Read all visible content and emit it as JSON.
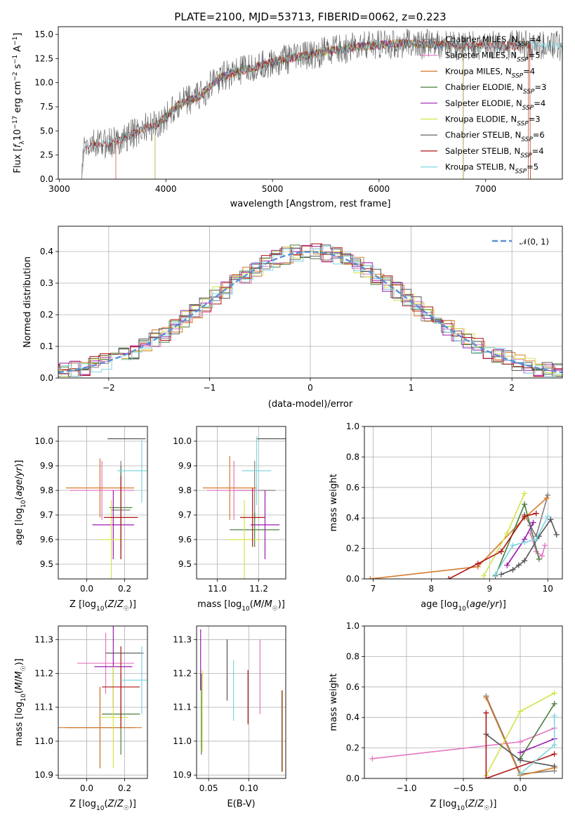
{
  "figure": {
    "title": "PLATE=2100, MJD=53713, FIBERID=0062, z=0.223"
  },
  "colors": {
    "C_MILES": "#7f7f7f",
    "S_MILES": "#e377c2",
    "K_MILES": "#d67a2a",
    "C_ELODIE": "#4a7f3f",
    "S_ELODIE": "#9a1ab0",
    "K_ELODIE": "#d4e34a",
    "C_STELIB": "#555555",
    "S_STELIB": "#b01515",
    "K_STELIB": "#7fd6e0",
    "gauss": "#5b8fd6",
    "grid": "#b0b0b0"
  },
  "chart_data": [
    {
      "id": "spectrum",
      "type": "line",
      "xlabel": "wavelength [Angstrom, rest frame]",
      "ylabel": "Flux [fλ10⁻¹⁷ erg cm⁻² s⁻¹ A⁻¹]",
      "xlim": [
        2990,
        7720
      ],
      "ylim": [
        0,
        15.8
      ],
      "xticks": [
        "3000",
        "4000",
        "5000",
        "6000",
        "7000"
      ],
      "yticks": [
        "0.0",
        "2.5",
        "5.0",
        "7.5",
        "10.0",
        "12.5",
        "15.0"
      ],
      "grid": false,
      "legend_position": "top-right",
      "data_continuum": {
        "x": [
          3210,
          3230,
          3300,
          3400,
          3500,
          3600,
          3700,
          3800,
          3900,
          4000,
          4100,
          4200,
          4300,
          4400,
          4500,
          4600,
          4800,
          5000,
          5200,
          5400,
          5600,
          5800,
          6000,
          6200,
          6400,
          6600,
          6800,
          7000,
          7200,
          7400,
          7600,
          7720
        ],
        "y": [
          0,
          3.2,
          3.5,
          3.7,
          3.8,
          4.2,
          4.8,
          5.3,
          5.5,
          6.5,
          7.6,
          8.1,
          8.5,
          9.5,
          10.5,
          10.9,
          11.5,
          12.1,
          12.6,
          13.0,
          13.4,
          13.7,
          13.9,
          14.1,
          14.0,
          13.9,
          13.8,
          13.9,
          13.8,
          13.9,
          13.8,
          13.8
        ]
      },
      "legend": [
        {
          "label": "Chabrier MILES, N_SSP=4",
          "text": "Chabrier MILES, N",
          "sub": "SSP",
          "tail": "=4",
          "color": "C_MILES"
        },
        {
          "label": "Salpeter MILES, N_SSP=5",
          "text": "Salpeter MILES, N",
          "sub": "SSP",
          "tail": "=5",
          "color": "S_MILES"
        },
        {
          "label": "Kroupa MILES, N_SSP=4",
          "text": "Kroupa MILES, N",
          "sub": "SSP",
          "tail": "=4",
          "color": "K_MILES"
        },
        {
          "label": "Chabrier ELODIE, N_SSP=3",
          "text": "Chabrier ELODIE, N",
          "sub": "SSP",
          "tail": "=3",
          "color": "C_ELODIE"
        },
        {
          "label": "Salpeter ELODIE, N_SSP=4",
          "text": "Salpeter ELODIE, N",
          "sub": "SSP",
          "tail": "=4",
          "color": "S_ELODIE"
        },
        {
          "label": "Kroupa ELODIE, N_SSP=3",
          "text": "Kroupa ELODIE, N",
          "sub": "SSP",
          "tail": "=3",
          "color": "K_ELODIE"
        },
        {
          "label": "Chabrier STELIB, N_SSP=6",
          "text": "Chabrier STELIB, N",
          "sub": "SSP",
          "tail": "=6",
          "color": "C_STELIB"
        },
        {
          "label": "Salpeter STELIB, N_SSP=4",
          "text": "Salpeter STELIB, N",
          "sub": "SSP",
          "tail": "=4",
          "color": "S_STELIB"
        },
        {
          "label": "Kroupa STELIB, N_SSP=5",
          "text": "Kroupa STELIB, N",
          "sub": "SSP",
          "tail": "=5",
          "color": "K_STELIB"
        }
      ]
    },
    {
      "id": "residuals",
      "type": "histogram",
      "xlabel": "(data-model)/error",
      "ylabel": "Normed distribution",
      "xlim": [
        -2.5,
        2.5
      ],
      "ylim": [
        0,
        0.48
      ],
      "xticks": [
        -2,
        -1,
        0,
        1,
        2
      ],
      "yticks": [
        0.0,
        0.1,
        0.2,
        0.3,
        0.4
      ],
      "grid": true,
      "legend_position": "top-right",
      "gauss_label": "𝒩(0, 1)",
      "bin_width": 0.1
    },
    {
      "id": "age_vs_Z",
      "type": "errorbar",
      "xlabel": "Z [log₁₀(Z/Z☉)]",
      "ylabel": "age  [log₁₀(age/yr)]",
      "xlim": [
        -0.15,
        0.32
      ],
      "ylim": [
        9.44,
        10.06
      ],
      "xticks": [
        0.0,
        0.2
      ],
      "yticks": [
        9.5,
        9.6,
        9.7,
        9.8,
        9.9,
        10.0
      ],
      "points": [
        {
          "m": "C_MILES",
          "x": 0.18,
          "xe": 0.05,
          "y": 9.72,
          "ye": 0.2
        },
        {
          "m": "S_MILES",
          "x": 0.08,
          "xe": 0.17,
          "y": 9.8,
          "ye": 0.12
        },
        {
          "m": "K_MILES",
          "x": 0.07,
          "xe": 0.18,
          "y": 9.81,
          "ye": 0.12
        },
        {
          "m": "C_ELODIE",
          "x": 0.18,
          "xe": 0.06,
          "y": 9.73,
          "ye": 0.17
        },
        {
          "m": "S_ELODIE",
          "x": 0.14,
          "xe": 0.11,
          "y": 9.66,
          "ye": 0.14
        },
        {
          "m": "K_ELODIE",
          "x": 0.13,
          "xe": 0.06,
          "y": 9.6,
          "ye": 0.16
        },
        {
          "m": "C_STELIB",
          "x": 0.21,
          "xe": 0.1,
          "y": 10.01,
          "ye": 0.0
        },
        {
          "m": "S_STELIB",
          "x": 0.18,
          "xe": 0.09,
          "y": 9.69,
          "ye": 0.17
        },
        {
          "m": "K_STELIB",
          "x": 0.29,
          "xe": 0.13,
          "y": 9.88,
          "ye": 0.13
        }
      ]
    },
    {
      "id": "age_vs_mass",
      "type": "errorbar",
      "xlabel": "mass [log₁₀(M/M☉)]",
      "ylabel": "",
      "xlim": [
        10.9,
        11.33
      ],
      "ylim": [
        9.44,
        10.06
      ],
      "xticks": [
        11.0,
        11.2
      ],
      "yticks": [
        9.5,
        9.6,
        9.7,
        9.8,
        9.9,
        10.0
      ],
      "points": [
        {
          "m": "C_MILES",
          "x": 11.18,
          "xe": 0.1,
          "y": 9.8,
          "ye": 0.12
        },
        {
          "m": "S_MILES",
          "x": 11.08,
          "xe": 0.13,
          "y": 9.8,
          "ye": 0.12
        },
        {
          "m": "K_MILES",
          "x": 11.06,
          "xe": 0.13,
          "y": 9.81,
          "ye": 0.13
        },
        {
          "m": "C_ELODIE",
          "x": 11.18,
          "xe": 0.12,
          "y": 9.64,
          "ye": 0.07
        },
        {
          "m": "S_ELODIE",
          "x": 11.23,
          "xe": 0.07,
          "y": 9.66,
          "ye": 0.14
        },
        {
          "m": "K_ELODIE",
          "x": 11.13,
          "xe": 0.08,
          "y": 9.6,
          "ye": 0.16
        },
        {
          "m": "C_STELIB",
          "x": 11.26,
          "xe": 0.07,
          "y": 10.01,
          "ye": 0.0
        },
        {
          "m": "S_STELIB",
          "x": 11.17,
          "xe": 0.06,
          "y": 9.69,
          "ye": 0.12
        },
        {
          "m": "K_STELIB",
          "x": 11.19,
          "xe": 0.07,
          "y": 9.88,
          "ye": 0.14
        }
      ]
    },
    {
      "id": "mass_weight_vs_age",
      "type": "line",
      "xlabel": "age  [log₁₀(age/yr)]",
      "ylabel": "mass weight",
      "xlim": [
        6.85,
        10.25
      ],
      "ylim": [
        0,
        1.0
      ],
      "xticks": [
        7,
        8,
        9,
        10
      ],
      "yticks": [
        0.0,
        0.2,
        0.4,
        0.6,
        0.8,
        1.0
      ],
      "grid": true,
      "series": [
        {
          "m": "C_MILES",
          "x": [
            9.6,
            9.7,
            9.8,
            10.0
          ],
          "y": [
            0.42,
            0.35,
            0.28,
            0.55
          ]
        },
        {
          "m": "S_MILES",
          "x": [
            9.7,
            9.8,
            9.9,
            9.95
          ],
          "y": [
            0.3,
            0.18,
            0.15,
            0.22
          ]
        },
        {
          "m": "K_MILES",
          "x": [
            6.95,
            8.8,
            9.6,
            9.98
          ],
          "y": [
            0.0,
            0.08,
            0.4,
            0.53
          ]
        },
        {
          "m": "C_ELODIE",
          "x": [
            9.1,
            9.6,
            9.85
          ],
          "y": [
            0.02,
            0.49,
            0.13
          ]
        },
        {
          "m": "S_ELODIE",
          "x": [
            9.3,
            9.6,
            9.75
          ],
          "y": [
            0.09,
            0.26,
            0.37
          ]
        },
        {
          "m": "K_ELODIE",
          "x": [
            8.9,
            9.3,
            9.6
          ],
          "y": [
            0.02,
            0.3,
            0.56
          ]
        },
        {
          "m": "C_STELIB",
          "x": [
            9.2,
            9.4,
            9.5,
            9.6,
            9.85,
            10.05,
            10.15
          ],
          "y": [
            0.03,
            0.06,
            0.09,
            0.12,
            0.28,
            0.39,
            0.29
          ]
        },
        {
          "m": "S_STELIB",
          "x": [
            8.3,
            8.8,
            9.2,
            9.6,
            9.8
          ],
          "y": [
            0.0,
            0.1,
            0.18,
            0.41,
            0.43
          ]
        },
        {
          "m": "K_STELIB",
          "x": [
            9.1,
            9.4,
            9.6,
            9.8,
            10.0
          ],
          "y": [
            0.03,
            0.22,
            0.24,
            0.26,
            0.41
          ]
        }
      ]
    },
    {
      "id": "mass_vs_Z",
      "type": "errorbar",
      "xlabel": "Z [log₁₀(Z/Z☉)]",
      "ylabel": "mass [log₁₀(M/M☉)]",
      "xlim": [
        -0.15,
        0.32
      ],
      "ylim": [
        10.89,
        11.34
      ],
      "xticks": [
        0.0,
        0.2
      ],
      "yticks": [
        10.9,
        11.0,
        11.1,
        11.2,
        11.3
      ],
      "points": [
        {
          "m": "C_MILES",
          "x": 0.07,
          "xe": 0.18,
          "y": 11.04,
          "ye": 0.12
        },
        {
          "m": "S_MILES",
          "x": 0.1,
          "xe": 0.15,
          "y": 11.23,
          "ye": 0.09
        },
        {
          "m": "K_MILES",
          "x": 0.07,
          "xe": 0.22,
          "y": 11.04,
          "ye": 0.12
        },
        {
          "m": "C_ELODIE",
          "x": 0.18,
          "xe": 0.1,
          "y": 11.08,
          "ye": 0.12
        },
        {
          "m": "S_ELODIE",
          "x": 0.14,
          "xe": 0.1,
          "y": 11.22,
          "ye": 0.12
        },
        {
          "m": "K_ELODIE",
          "x": 0.14,
          "xe": 0.08,
          "y": 11.07,
          "ye": 0.15
        },
        {
          "m": "C_STELIB",
          "x": 0.2,
          "xe": 0.1,
          "y": 11.26,
          "ye": 0.0
        },
        {
          "m": "S_STELIB",
          "x": 0.18,
          "xe": 0.1,
          "y": 11.16,
          "ye": 0.12
        },
        {
          "m": "K_STELIB",
          "x": 0.29,
          "xe": 0.11,
          "y": 11.18,
          "ye": 0.1
        }
      ]
    },
    {
      "id": "mass_vs_ebv",
      "type": "errorbar",
      "xlabel": "E(B-V)",
      "ylabel": "",
      "xlim": [
        0.035,
        0.146
      ],
      "ylim": [
        10.89,
        11.34
      ],
      "xticks": [
        0.05,
        0.1
      ],
      "yticks": [
        10.9,
        11.0,
        11.1,
        11.2,
        11.3
      ],
      "points": [
        {
          "m": "C_MILES",
          "x": 0.141,
          "xe": 0,
          "y": 11.03,
          "ye": 0.12
        },
        {
          "m": "S_MILES",
          "x": 0.114,
          "xe": 0,
          "y": 11.19,
          "ye": 0.11
        },
        {
          "m": "K_MILES",
          "x": 0.142,
          "xe": 0,
          "y": 11.03,
          "ye": 0.12
        },
        {
          "m": "C_ELODIE",
          "x": 0.041,
          "xe": 0,
          "y": 11.08,
          "ye": 0.12
        },
        {
          "m": "S_ELODIE",
          "x": 0.04,
          "xe": 0,
          "y": 11.24,
          "ye": 0.09
        },
        {
          "m": "K_ELODIE",
          "x": 0.042,
          "xe": 0,
          "y": 11.09,
          "ye": 0.12
        },
        {
          "m": "C_STELIB",
          "x": 0.073,
          "xe": 0,
          "y": 11.21,
          "ye": 0.09
        },
        {
          "m": "S_STELIB",
          "x": 0.099,
          "xe": 0,
          "y": 11.13,
          "ye": 0.08
        },
        {
          "m": "K_STELIB",
          "x": 0.081,
          "xe": 0,
          "y": 11.15,
          "ye": 0.09
        }
      ]
    },
    {
      "id": "mass_weight_vs_Z",
      "type": "line",
      "xlabel": "Z [log₁₀(Z/Z☉)]",
      "ylabel": "mass weight",
      "xlim": [
        -1.37,
        0.37
      ],
      "ylim": [
        0,
        1.0
      ],
      "xticks": [
        -1.0,
        -0.5,
        0.0
      ],
      "yticks": [
        0.0,
        0.2,
        0.4,
        0.6,
        0.8,
        1.0
      ],
      "grid": true,
      "series": [
        {
          "m": "C_MILES",
          "x": [
            -0.3,
            0.0,
            0.3
          ],
          "y": [
            0.54,
            0.03,
            0.05
          ]
        },
        {
          "m": "S_MILES",
          "x": [
            -1.3,
            0.0,
            0.3
          ],
          "y": [
            0.13,
            0.24,
            0.33
          ]
        },
        {
          "m": "K_MILES",
          "x": [
            -0.3,
            0.0,
            0.3
          ],
          "y": [
            0.53,
            0.02,
            0.07
          ]
        },
        {
          "m": "C_ELODIE",
          "x": [
            0.0,
            0.3
          ],
          "y": [
            0.13,
            0.49
          ]
        },
        {
          "m": "S_ELODIE",
          "x": [
            0.0,
            0.3
          ],
          "y": [
            0.17,
            0.26
          ]
        },
        {
          "m": "K_ELODIE",
          "x": [
            -0.3,
            0.0,
            0.3
          ],
          "y": [
            0.02,
            0.44,
            0.56
          ]
        },
        {
          "m": "C_STELIB",
          "x": [
            -0.3,
            0.0,
            0.3
          ],
          "y": [
            0.29,
            0.12,
            0.08
          ]
        },
        {
          "m": "S_STELIB",
          "x": [
            -0.3,
            -0.3,
            0.3
          ],
          "y": [
            0.43,
            0.0,
            0.16
          ]
        },
        {
          "m": "K_STELIB",
          "x": [
            0.0,
            0.3,
            0.3
          ],
          "y": [
            0.03,
            0.22,
            0.41
          ]
        }
      ]
    }
  ]
}
